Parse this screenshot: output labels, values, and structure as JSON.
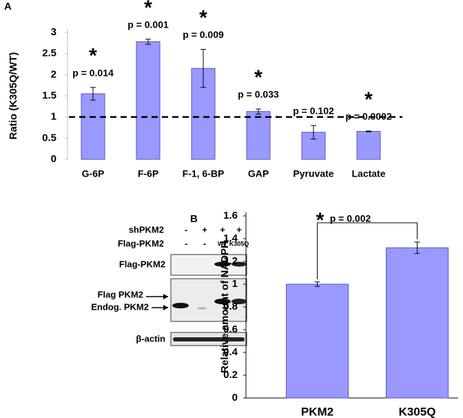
{
  "chart_data": [
    {
      "type": "bar",
      "panel": "A",
      "y_label": "Ratio (K305Q/WT)",
      "categories": [
        "G-6P",
        "F-6P",
        "F-1, 6-BP",
        "GAP",
        "Pyruvate",
        "Lactate"
      ],
      "values": [
        1.55,
        2.78,
        2.15,
        1.13,
        0.64,
        0.66
      ],
      "errors": [
        0.15,
        0.06,
        0.45,
        0.06,
        0.16,
        0.01
      ],
      "p_labels": [
        "p = 0.014",
        "p = 0.001",
        "p = 0.009",
        "p = 0.033",
        "p = 0.102",
        "p = 0.0002"
      ],
      "markers": [
        "*",
        "*",
        "*",
        "*",
        null,
        "*"
      ],
      "reference_line": 1,
      "color": "#9999ff",
      "marker_color": "#f04a1e",
      "ylim": [
        0,
        3
      ],
      "yticks": [
        0,
        0.5,
        1,
        1.5,
        2,
        2.5,
        3
      ]
    },
    {
      "type": "bar",
      "panel": "B",
      "y_label": "Relative amount of NADPH",
      "categories": [
        "PKM2",
        "K305Q"
      ],
      "values": [
        1.0,
        1.32
      ],
      "errors": [
        0.02,
        0.05
      ],
      "annotation": {
        "marker": "*",
        "label": "p = 0.002"
      },
      "color": "#9999ff",
      "marker_color": "#f04a1e",
      "ylim": [
        0,
        1.6
      ],
      "yticks": [
        0,
        0.2,
        0.4,
        0.6,
        0.8,
        1,
        1.2,
        1.4,
        1.6
      ]
    }
  ],
  "blot": {
    "header_rows": [
      {
        "label": "shPKM2",
        "lanes": [
          "-",
          "+",
          "+",
          "+"
        ]
      },
      {
        "label": "Flag-PKM2",
        "lanes": [
          "-",
          "-",
          "WT",
          "K305Q"
        ]
      }
    ],
    "row_labels": [
      "Flag-PKM2",
      "Flag PKM2",
      "Endog. PKM2",
      "β-actin"
    ]
  }
}
